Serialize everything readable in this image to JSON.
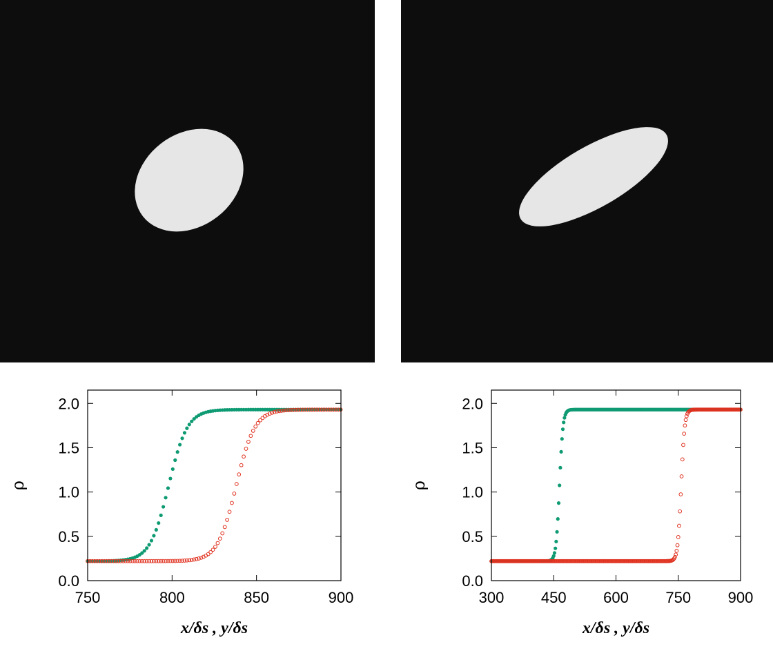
{
  "images": [
    {
      "name": "left-density-field"
    },
    {
      "name": "right-density-field"
    }
  ],
  "chart_data": [
    {
      "type": "scatter",
      "xlabel": "x/δs , y/δs",
      "ylabel": "ρ",
      "xlim": [
        750,
        900
      ],
      "ylim": [
        0.0,
        2.15
      ],
      "xticks": [
        "750",
        "800",
        "850",
        "900"
      ],
      "yticks": [
        "0.0",
        "0.5",
        "1.0",
        "1.5",
        "2.0"
      ],
      "series": [
        {
          "marker": "filled-circle",
          "color": "#0e9a72",
          "profile": {
            "low": 0.22,
            "high": 1.93,
            "center": 798,
            "width": 5.5,
            "x_start": 750,
            "x_end": 900,
            "step": 1.4
          }
        },
        {
          "marker": "open-circle",
          "color": "#e0301e",
          "profile": {
            "low": 0.22,
            "high": 1.93,
            "center": 838,
            "width": 5.5,
            "x_start": 750,
            "x_end": 900,
            "step": 1.4
          }
        }
      ]
    },
    {
      "type": "scatter",
      "xlabel": "x/δs , y/δs",
      "ylabel": "ρ",
      "xlim": [
        300,
        900
      ],
      "ylim": [
        0.0,
        2.15
      ],
      "xticks": [
        "300",
        "450",
        "600",
        "750",
        "900"
      ],
      "yticks": [
        "0.0",
        "0.5",
        "1.0",
        "1.5",
        "2.0"
      ],
      "series": [
        {
          "marker": "filled-circle",
          "color": "#0e9a72",
          "profile": {
            "low": 0.22,
            "high": 1.93,
            "center": 464,
            "width": 4.2,
            "x_start": 300,
            "x_end": 900,
            "step": 2.0
          }
        },
        {
          "marker": "open-circle",
          "color": "#e0301e",
          "profile": {
            "low": 0.22,
            "high": 1.93,
            "center": 757,
            "width": 4.2,
            "x_start": 300,
            "x_end": 900,
            "step": 2.0
          }
        }
      ]
    }
  ]
}
